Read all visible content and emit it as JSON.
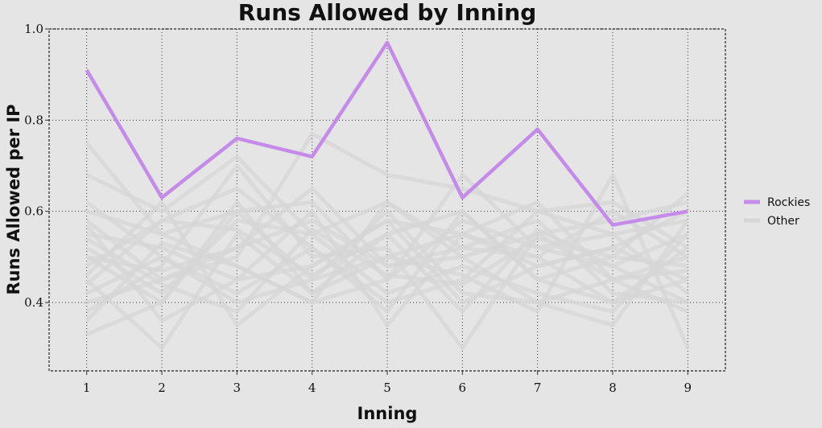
{
  "chart_data": {
    "type": "line",
    "title": "Runs Allowed by Inning",
    "xlabel": "Inning",
    "ylabel": "Runs Allowed per IP",
    "x": [
      1,
      2,
      3,
      4,
      5,
      6,
      7,
      8,
      9
    ],
    "xlim": [
      0.5,
      9.5
    ],
    "ylim": [
      0.25,
      1.0
    ],
    "yticks": [
      0.4,
      0.6,
      0.8,
      1.0
    ],
    "grid": true,
    "legend_position": "right",
    "legend": [
      {
        "label": "Rockies",
        "color": "#c48be8"
      },
      {
        "label": "Other",
        "color": "#d6d6d6"
      }
    ],
    "series": [
      {
        "name": "Rockies",
        "color": "#c48be8",
        "highlight": true,
        "values": [
          0.91,
          0.63,
          0.76,
          0.72,
          0.97,
          0.63,
          0.78,
          0.57,
          0.6
        ]
      },
      {
        "group": "Other",
        "values": [
          0.75,
          0.55,
          0.6,
          0.45,
          0.5,
          0.55,
          0.48,
          0.52,
          0.45
        ]
      },
      {
        "group": "Other",
        "values": [
          0.68,
          0.6,
          0.72,
          0.55,
          0.62,
          0.5,
          0.55,
          0.45,
          0.5
        ]
      },
      {
        "group": "Other",
        "values": [
          0.58,
          0.45,
          0.5,
          0.77,
          0.68,
          0.65,
          0.6,
          0.55,
          0.58
        ]
      },
      {
        "group": "Other",
        "values": [
          0.55,
          0.52,
          0.45,
          0.48,
          0.58,
          0.55,
          0.5,
          0.4,
          0.45
        ]
      },
      {
        "group": "Other",
        "values": [
          0.5,
          0.4,
          0.6,
          0.62,
          0.45,
          0.58,
          0.52,
          0.48,
          0.55
        ]
      },
      {
        "group": "Other",
        "values": [
          0.48,
          0.58,
          0.65,
          0.52,
          0.4,
          0.45,
          0.6,
          0.62,
          0.52
        ]
      },
      {
        "group": "Other",
        "values": [
          0.45,
          0.3,
          0.55,
          0.42,
          0.55,
          0.6,
          0.45,
          0.5,
          0.48
        ]
      },
      {
        "group": "Other",
        "values": [
          0.42,
          0.5,
          0.4,
          0.45,
          0.6,
          0.42,
          0.4,
          0.45,
          0.38
        ]
      },
      {
        "group": "Other",
        "values": [
          0.4,
          0.45,
          0.52,
          0.58,
          0.48,
          0.52,
          0.58,
          0.42,
          0.4
        ]
      },
      {
        "group": "Other",
        "values": [
          0.38,
          0.48,
          0.7,
          0.5,
          0.52,
          0.3,
          0.55,
          0.58,
          0.62
        ]
      },
      {
        "group": "Other",
        "values": [
          0.6,
          0.55,
          0.48,
          0.4,
          0.45,
          0.68,
          0.52,
          0.55,
          0.42
        ]
      },
      {
        "group": "Other",
        "values": [
          0.52,
          0.42,
          0.58,
          0.55,
          0.42,
          0.48,
          0.42,
          0.38,
          0.55
        ]
      },
      {
        "group": "Other",
        "values": [
          0.46,
          0.62,
          0.35,
          0.48,
          0.58,
          0.4,
          0.48,
          0.52,
          0.6
        ]
      },
      {
        "group": "Other",
        "values": [
          0.57,
          0.36,
          0.45,
          0.6,
          0.35,
          0.55,
          0.62,
          0.45,
          0.47
        ]
      },
      {
        "group": "Other",
        "values": [
          0.33,
          0.4,
          0.62,
          0.42,
          0.5,
          0.46,
          0.38,
          0.68,
          0.3
        ]
      },
      {
        "group": "Other",
        "values": [
          0.62,
          0.5,
          0.42,
          0.52,
          0.38,
          0.6,
          0.45,
          0.4,
          0.52
        ]
      },
      {
        "group": "Other",
        "values": [
          0.44,
          0.58,
          0.56,
          0.46,
          0.55,
          0.38,
          0.56,
          0.48,
          0.4
        ]
      },
      {
        "group": "Other",
        "values": [
          0.5,
          0.47,
          0.52,
          0.65,
          0.48,
          0.5,
          0.4,
          0.35,
          0.58
        ]
      },
      {
        "group": "Other",
        "values": [
          0.36,
          0.53,
          0.48,
          0.4,
          0.62,
          0.52,
          0.5,
          0.6,
          0.5
        ]
      },
      {
        "group": "Other",
        "values": [
          0.54,
          0.44,
          0.38,
          0.56,
          0.46,
          0.44,
          0.54,
          0.5,
          0.64
        ]
      }
    ]
  }
}
